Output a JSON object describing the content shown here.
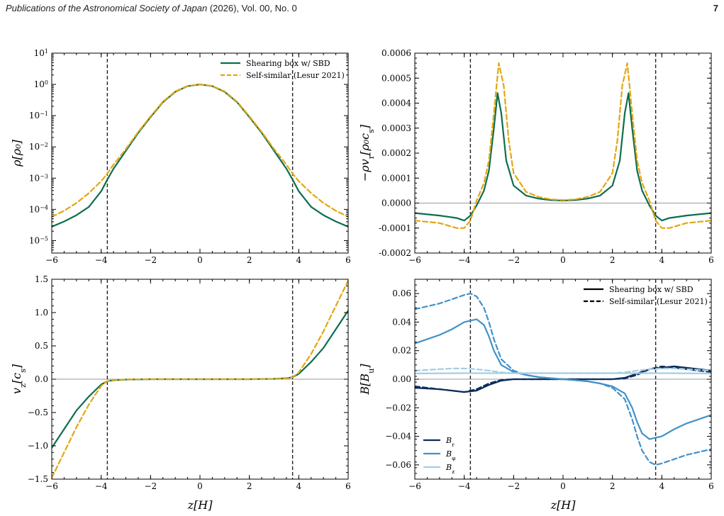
{
  "header": {
    "journal": "Publications of the Astronomical Society of Japan",
    "citation": " (2026), Vol. 00, No. 0",
    "page_number": "7"
  },
  "colors": {
    "shearing_box": "#0b6e4f",
    "self_similar": "#e3a70f",
    "B_r": "#0d2d5e",
    "B_phi": "#4192c9",
    "B_z": "#a6cee3",
    "zero_line": "#9a9a9a",
    "vline": "#222222"
  },
  "chart_data": [
    {
      "id": "rho",
      "type": "line",
      "ylabel": "ρ[ρ₀]",
      "xlabel": "",
      "xlim": [
        -6,
        6
      ],
      "ylim": [
        4e-06,
        10
      ],
      "yscale": "log",
      "xticks": [
        -6,
        -4,
        -2,
        0,
        2,
        4,
        6
      ],
      "xtick_labels": [
        "−6",
        "−4",
        "−2",
        "0",
        "2",
        "4",
        "6"
      ],
      "yticks": [
        1e-05,
        0.0001,
        0.001,
        0.01,
        0.1,
        1,
        10
      ],
      "ytick_labels": [
        {
          "base": "10",
          "exp": "−5"
        },
        {
          "base": "10",
          "exp": "−4"
        },
        {
          "base": "10",
          "exp": "−3"
        },
        {
          "base": "10",
          "exp": "−2"
        },
        {
          "base": "10",
          "exp": "−1"
        },
        {
          "base": "10",
          "exp": "0"
        },
        {
          "base": "10",
          "exp": "1"
        }
      ],
      "vlines": [
        -3.75,
        3.75
      ],
      "legend": {
        "position": "top-right",
        "entries": [
          {
            "label": "Shearing box w/ SBD",
            "style": "solid",
            "color": "#0b6e4f"
          },
          {
            "label": "Self-similar (Lesur 2021)",
            "style": "dashed",
            "color": "#e3a70f"
          }
        ]
      },
      "series": [
        {
          "name": "Shearing box w/ SBD",
          "style": "solid",
          "color": "#0b6e4f",
          "x": [
            -6,
            -5.5,
            -5,
            -4.5,
            -4,
            -3.75,
            -3.5,
            -3,
            -2.5,
            -2,
            -1.5,
            -1,
            -0.5,
            0,
            0.5,
            1,
            1.5,
            2,
            2.5,
            3,
            3.5,
            3.75,
            4,
            4.5,
            5,
            5.5,
            6
          ],
          "y": [
            2.8e-05,
            4.1e-05,
            6.5e-05,
            0.00012,
            0.00038,
            0.0009,
            0.002,
            0.0075,
            0.028,
            0.09,
            0.27,
            0.58,
            0.88,
            1.0,
            0.88,
            0.58,
            0.27,
            0.09,
            0.028,
            0.0075,
            0.002,
            0.0009,
            0.00038,
            0.00012,
            6.5e-05,
            4.1e-05,
            2.8e-05
          ]
        },
        {
          "name": "Self-similar (Lesur 2021)",
          "style": "dashed",
          "color": "#e3a70f",
          "x": [
            -6,
            -5.5,
            -5,
            -4.5,
            -4,
            -3.75,
            -3.5,
            -3,
            -2.5,
            -2,
            -1.5,
            -1,
            -0.5,
            0,
            0.5,
            1,
            1.5,
            2,
            2.5,
            3,
            3.5,
            3.75,
            4,
            4.5,
            5,
            5.5,
            6
          ],
          "y": [
            5.8e-05,
            9e-05,
            0.00016,
            0.00033,
            0.0008,
            0.0014,
            0.0027,
            0.0085,
            0.03,
            0.095,
            0.28,
            0.6,
            0.89,
            1.0,
            0.89,
            0.6,
            0.28,
            0.095,
            0.03,
            0.0085,
            0.0027,
            0.0014,
            0.0008,
            0.00033,
            0.00016,
            9e-05,
            5.8e-05
          ]
        }
      ]
    },
    {
      "id": "mass_flux",
      "type": "line",
      "ylabel": "−ρv_r[ρ₀c_s]",
      "xlabel": "",
      "xlim": [
        -6,
        6
      ],
      "ylim": [
        -0.0002,
        0.0006
      ],
      "xticks": [
        -6,
        -4,
        -2,
        0,
        2,
        4,
        6
      ],
      "xtick_labels": [
        "−6",
        "−4",
        "−2",
        "0",
        "2",
        "4",
        "6"
      ],
      "yticks": [
        -0.0002,
        -0.0001,
        0,
        0.0001,
        0.0002,
        0.0003,
        0.0004,
        0.0005,
        0.0006
      ],
      "ytick_labels": [
        "-0.0002",
        "-0.0001",
        "0.0000",
        "0.0001",
        "0.0002",
        "0.0003",
        "0.0004",
        "0.0005",
        "0.0006"
      ],
      "vlines": [
        -3.75,
        3.75
      ],
      "zero_line": true,
      "series": [
        {
          "name": "Shearing box w/ SBD",
          "style": "solid",
          "color": "#0b6e4f",
          "x": [
            -6,
            -5,
            -4.3,
            -4.0,
            -3.75,
            -3.5,
            -3.2,
            -3.0,
            -2.8,
            -2.65,
            -2.5,
            -2.3,
            -2.0,
            -1.5,
            -1.0,
            -0.5,
            0,
            0.5,
            1.0,
            1.5,
            2.0,
            2.3,
            2.5,
            2.65,
            2.8,
            3.0,
            3.2,
            3.5,
            3.75,
            4.0,
            4.3,
            5,
            6
          ],
          "y": [
            -4e-05,
            -5e-05,
            -6e-05,
            -7e-05,
            -5e-05,
            -1e-05,
            5e-05,
            0.00013,
            0.0003,
            0.00044,
            0.00036,
            0.00017,
            7e-05,
            3e-05,
            1.8e-05,
            1.2e-05,
            1e-05,
            1.2e-05,
            1.8e-05,
            3e-05,
            7e-05,
            0.00017,
            0.00036,
            0.00044,
            0.0003,
            0.00013,
            5e-05,
            -1e-05,
            -5e-05,
            -7e-05,
            -6e-05,
            -5e-05,
            -4e-05
          ]
        },
        {
          "name": "Self-similar (Lesur 2021)",
          "style": "dashed",
          "color": "#e3a70f",
          "x": [
            -6,
            -5,
            -4.3,
            -4.0,
            -3.75,
            -3.5,
            -3.2,
            -3.0,
            -2.8,
            -2.6,
            -2.4,
            -2.2,
            -2.0,
            -1.5,
            -1.0,
            -0.5,
            0,
            0.5,
            1.0,
            1.5,
            2.0,
            2.2,
            2.4,
            2.6,
            2.8,
            3.0,
            3.2,
            3.5,
            3.75,
            4.0,
            4.3,
            5,
            6
          ],
          "y": [
            -7e-05,
            -8e-05,
            -0.0001,
            -0.0001,
            -7e-05,
            1e-05,
            8e-05,
            0.00017,
            0.00036,
            0.00056,
            0.00047,
            0.00025,
            0.00012,
            4.5e-05,
            2.5e-05,
            1.5e-05,
            1.2e-05,
            1.5e-05,
            2.5e-05,
            4.5e-05,
            0.00012,
            0.00025,
            0.00047,
            0.00056,
            0.00036,
            0.00017,
            8e-05,
            1e-05,
            -7e-05,
            -0.0001,
            -0.0001,
            -8e-05,
            -7e-05
          ]
        }
      ]
    },
    {
      "id": "vz",
      "type": "line",
      "ylabel": "v_z[c_s]",
      "xlabel": "z[H]",
      "xlim": [
        -6,
        6
      ],
      "ylim": [
        -1.5,
        1.5
      ],
      "xticks": [
        -6,
        -4,
        -2,
        0,
        2,
        4,
        6
      ],
      "xtick_labels": [
        "−6",
        "−4",
        "−2",
        "0",
        "2",
        "4",
        "6"
      ],
      "yticks": [
        -1.5,
        -1.0,
        -0.5,
        0,
        0.5,
        1.0,
        1.5
      ],
      "ytick_labels": [
        "−1.5",
        "−1.0",
        "−0.5",
        "0.0",
        "0.5",
        "1.0",
        "1.5"
      ],
      "vlines": [
        -3.75,
        3.75
      ],
      "zero_line": true,
      "series": [
        {
          "name": "Shearing box w/ SBD",
          "style": "solid",
          "color": "#0b6e4f",
          "x": [
            -6,
            -5.5,
            -5,
            -4.5,
            -4.0,
            -3.75,
            -3.5,
            -3,
            -2,
            -1,
            0,
            1,
            2,
            3,
            3.5,
            3.75,
            4.0,
            4.5,
            5,
            5.5,
            6
          ],
          "y": [
            -1.03,
            -0.75,
            -0.47,
            -0.26,
            -0.08,
            -0.03,
            -0.015,
            -0.005,
            0,
            0,
            0,
            0,
            0,
            0.005,
            0.015,
            0.03,
            0.08,
            0.26,
            0.47,
            0.75,
            1.03
          ]
        },
        {
          "name": "Self-similar (Lesur 2021)",
          "style": "dashed",
          "color": "#e3a70f",
          "x": [
            -6,
            -5.5,
            -5,
            -4.5,
            -4.0,
            -3.75,
            -3.5,
            -3,
            -2,
            -1,
            0,
            1,
            2,
            3,
            3.5,
            3.75,
            4.0,
            4.5,
            5,
            5.5,
            6
          ],
          "y": [
            -1.48,
            -1.1,
            -0.72,
            -0.38,
            -0.1,
            -0.03,
            -0.01,
            -0.003,
            0,
            0,
            0,
            0,
            0,
            0.003,
            0.01,
            0.03,
            0.1,
            0.38,
            0.72,
            1.1,
            1.48
          ]
        }
      ]
    },
    {
      "id": "B",
      "type": "line",
      "ylabel": "B[B_u]",
      "xlabel": "z[H]",
      "xlim": [
        -6,
        6
      ],
      "ylim": [
        -0.07,
        0.07
      ],
      "xticks": [
        -6,
        -4,
        -2,
        0,
        2,
        4,
        6
      ],
      "xtick_labels": [
        "−6",
        "−4",
        "−2",
        "0",
        "2",
        "4",
        "6"
      ],
      "yticks": [
        -0.06,
        -0.04,
        -0.02,
        0,
        0.02,
        0.04,
        0.06
      ],
      "ytick_labels": [
        "−0.06",
        "−0.04",
        "−0.02",
        "0.00",
        "0.02",
        "0.04",
        "0.06"
      ],
      "vlines": [
        -3.75,
        3.75
      ],
      "zero_line": true,
      "legend": {
        "position": "top-right",
        "entries": [
          {
            "label": "Shearing box w/ SBD",
            "style": "solid",
            "color": "#000000"
          },
          {
            "label": "Self-similar (Lesur 2021)",
            "style": "dashed",
            "color": "#000000"
          }
        ]
      },
      "legend2": {
        "position": "bottom-left",
        "entries": [
          {
            "label": "B_r",
            "color": "#0d2d5e"
          },
          {
            "label": "B_φ",
            "color": "#4192c9"
          },
          {
            "label": "B_z",
            "color": "#a6cee3"
          }
        ]
      },
      "series": [
        {
          "name": "B_r",
          "style": "solid",
          "color": "#0d2d5e",
          "x": [
            -6,
            -5,
            -4.5,
            -4,
            -3.5,
            -3,
            -2.5,
            -2,
            -1,
            0,
            1,
            2,
            2.5,
            3,
            3.5,
            4,
            4.5,
            5,
            6
          ],
          "y": [
            -0.006,
            -0.007,
            -0.008,
            -0.009,
            -0.008,
            -0.004,
            -0.001,
            0.0,
            0.0,
            0.0,
            0.0,
            0.0,
            0.001,
            0.004,
            0.007,
            0.008,
            0.009,
            0.008,
            0.006
          ]
        },
        {
          "name": "B_r",
          "style": "dashed",
          "color": "#0d2d5e",
          "x": [
            -6,
            -5,
            -4.5,
            -4,
            -3.5,
            -3,
            -2.5,
            -2,
            -1,
            0,
            1,
            2,
            2.5,
            3,
            3.5,
            4,
            4.5,
            5,
            6
          ],
          "y": [
            -0.005,
            -0.007,
            -0.008,
            -0.009,
            -0.007,
            -0.003,
            -0.0005,
            0.0,
            0.0,
            0.0,
            0.0,
            0.0,
            0.0005,
            0.003,
            0.007,
            0.009,
            0.008,
            0.007,
            0.005
          ]
        },
        {
          "name": "B_φ",
          "style": "solid",
          "color": "#4192c9",
          "x": [
            -6,
            -5,
            -4.5,
            -4,
            -3.5,
            -3.2,
            -3.0,
            -2.8,
            -2.5,
            -2,
            -1.5,
            -1,
            -0.5,
            0,
            0.5,
            1,
            1.5,
            2,
            2.5,
            2.8,
            3.0,
            3.2,
            3.5,
            4,
            4.5,
            5,
            6
          ],
          "y": [
            0.025,
            0.031,
            0.035,
            0.04,
            0.042,
            0.038,
            0.03,
            0.02,
            0.01,
            0.005,
            0.003,
            0.0015,
            0.0007,
            0.0,
            -0.0007,
            -0.0015,
            -0.003,
            -0.005,
            -0.01,
            -0.02,
            -0.03,
            -0.038,
            -0.042,
            -0.04,
            -0.035,
            -0.031,
            -0.025
          ]
        },
        {
          "name": "B_φ",
          "style": "dashed",
          "color": "#4192c9",
          "x": [
            -6,
            -5,
            -4.5,
            -4,
            -3.75,
            -3.5,
            -3.2,
            -3.0,
            -2.8,
            -2.5,
            -2,
            -1.5,
            -1,
            -0.5,
            0,
            0.5,
            1,
            1.5,
            2,
            2.5,
            2.8,
            3.0,
            3.2,
            3.5,
            3.75,
            4,
            4.5,
            5,
            6
          ],
          "y": [
            0.049,
            0.053,
            0.056,
            0.059,
            0.06,
            0.058,
            0.05,
            0.04,
            0.028,
            0.014,
            0.006,
            0.003,
            0.0015,
            0.0007,
            0.0,
            -0.0007,
            -0.0015,
            -0.003,
            -0.006,
            -0.014,
            -0.028,
            -0.04,
            -0.05,
            -0.058,
            -0.06,
            -0.059,
            -0.056,
            -0.053,
            -0.049
          ]
        },
        {
          "name": "B_z",
          "style": "solid",
          "color": "#a6cee3",
          "x": [
            -6,
            -4,
            -2,
            0,
            2,
            4,
            6
          ],
          "y": [
            0.004,
            0.0042,
            0.0042,
            0.0042,
            0.0042,
            0.0042,
            0.004
          ]
        },
        {
          "name": "B_z",
          "style": "dashed",
          "color": "#a6cee3",
          "x": [
            -6,
            -5,
            -4.5,
            -4,
            -3.5,
            -3,
            -2.5,
            -2,
            -1,
            0,
            1,
            2,
            2.5,
            3,
            3.5,
            4,
            4.5,
            5,
            6
          ],
          "y": [
            0.006,
            0.007,
            0.0075,
            0.0075,
            0.007,
            0.006,
            0.0048,
            0.0042,
            0.0042,
            0.0042,
            0.0042,
            0.0042,
            0.0048,
            0.006,
            0.007,
            0.0075,
            0.0075,
            0.007,
            0.006
          ]
        }
      ]
    }
  ]
}
